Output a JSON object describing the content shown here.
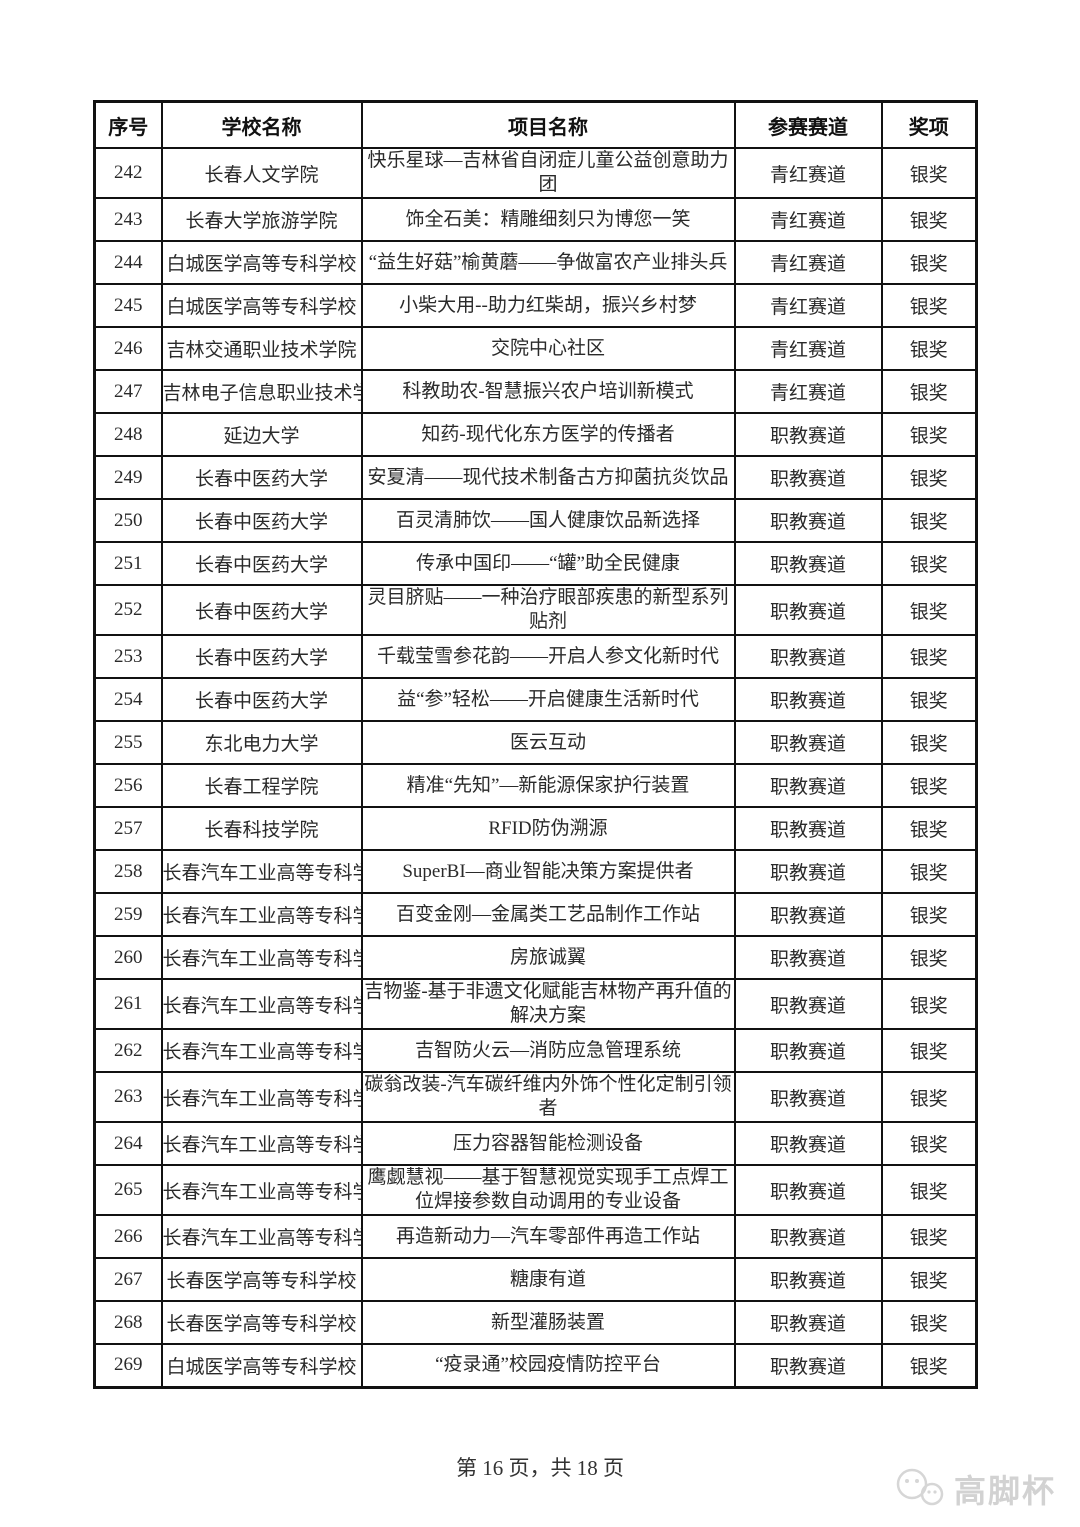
{
  "table": {
    "headers": [
      "序号",
      "学校名称",
      "项目名称",
      "参赛赛道",
      "奖项"
    ],
    "rows": [
      {
        "no": "242",
        "school": "长春人文学院",
        "project": "快乐星球—吉林省自闭症儿童公益创意助力团",
        "track": "青红赛道",
        "award": "银奖"
      },
      {
        "no": "243",
        "school": "长春大学旅游学院",
        "project": "饰全石美：精雕细刻只为博您一笑",
        "track": "青红赛道",
        "award": "银奖"
      },
      {
        "no": "244",
        "school": "白城医学高等专科学校",
        "project": "“益生好菇”榆黄蘑——争做富农产业排头兵",
        "track": "青红赛道",
        "award": "银奖"
      },
      {
        "no": "245",
        "school": "白城医学高等专科学校",
        "project": "小柴大用--助力红柴胡，振兴乡村梦",
        "track": "青红赛道",
        "award": "银奖"
      },
      {
        "no": "246",
        "school": "吉林交通职业技术学院",
        "project": "交院中心社区",
        "track": "青红赛道",
        "award": "银奖"
      },
      {
        "no": "247",
        "school": "吉林电子信息职业技术学院",
        "project": "科教助农-智慧振兴农户培训新模式",
        "track": "青红赛道",
        "award": "银奖"
      },
      {
        "no": "248",
        "school": "延边大学",
        "project": "知药-现代化东方医学的传播者",
        "track": "职教赛道",
        "award": "银奖"
      },
      {
        "no": "249",
        "school": "长春中医药大学",
        "project": "安夏清——现代技术制备古方抑菌抗炎饮品",
        "track": "职教赛道",
        "award": "银奖"
      },
      {
        "no": "250",
        "school": "长春中医药大学",
        "project": "百灵清肺饮——国人健康饮品新选择",
        "track": "职教赛道",
        "award": "银奖"
      },
      {
        "no": "251",
        "school": "长春中医药大学",
        "project": "传承中国印——“罐”助全民健康",
        "track": "职教赛道",
        "award": "银奖"
      },
      {
        "no": "252",
        "school": "长春中医药大学",
        "project": "灵目脐贴——一种治疗眼部疾患的新型系列贴剂",
        "track": "职教赛道",
        "award": "银奖"
      },
      {
        "no": "253",
        "school": "长春中医药大学",
        "project": "千载莹雪参花韵——开启人参文化新时代",
        "track": "职教赛道",
        "award": "银奖"
      },
      {
        "no": "254",
        "school": "长春中医药大学",
        "project": "益“参”轻松——开启健康生活新时代",
        "track": "职教赛道",
        "award": "银奖"
      },
      {
        "no": "255",
        "school": "东北电力大学",
        "project": "医云互动",
        "track": "职教赛道",
        "award": "银奖"
      },
      {
        "no": "256",
        "school": "长春工程学院",
        "project": "精准“先知”—新能源保家护行装置",
        "track": "职教赛道",
        "award": "银奖"
      },
      {
        "no": "257",
        "school": "长春科技学院",
        "project": "RFID防伪溯源",
        "track": "职教赛道",
        "award": "银奖"
      },
      {
        "no": "258",
        "school": "长春汽车工业高等专科学校",
        "project": "SuperBI—商业智能决策方案提供者",
        "track": "职教赛道",
        "award": "银奖"
      },
      {
        "no": "259",
        "school": "长春汽车工业高等专科学校",
        "project": "百变金刚—金属类工艺品制作工作站",
        "track": "职教赛道",
        "award": "银奖"
      },
      {
        "no": "260",
        "school": "长春汽车工业高等专科学校",
        "project": "房旅诚翼",
        "track": "职教赛道",
        "award": "银奖"
      },
      {
        "no": "261",
        "school": "长春汽车工业高等专科学校",
        "project": "吉物鉴-基于非遗文化赋能吉林物产再升值的解决方案",
        "track": "职教赛道",
        "award": "银奖"
      },
      {
        "no": "262",
        "school": "长春汽车工业高等专科学校",
        "project": "吉智防火云—消防应急管理系统",
        "track": "职教赛道",
        "award": "银奖"
      },
      {
        "no": "263",
        "school": "长春汽车工业高等专科学校",
        "project": "碳翁改装-汽车碳纤维内外饰个性化定制引领者",
        "track": "职教赛道",
        "award": "银奖"
      },
      {
        "no": "264",
        "school": "长春汽车工业高等专科学校",
        "project": "压力容器智能检测设备",
        "track": "职教赛道",
        "award": "银奖"
      },
      {
        "no": "265",
        "school": "长春汽车工业高等专科学校",
        "project": "鹰觑慧视——基于智慧视觉实现手工点焊工位焊接参数自动调用的专业设备",
        "track": "职教赛道",
        "award": "银奖"
      },
      {
        "no": "266",
        "school": "长春汽车工业高等专科学校",
        "project": "再造新动力—汽车零部件再造工作站",
        "track": "职教赛道",
        "award": "银奖"
      },
      {
        "no": "267",
        "school": "长春医学高等专科学校",
        "project": "糖康有道",
        "track": "职教赛道",
        "award": "银奖"
      },
      {
        "no": "268",
        "school": "长春医学高等专科学校",
        "project": "新型灌肠装置",
        "track": "职教赛道",
        "award": "银奖"
      },
      {
        "no": "269",
        "school": "白城医学高等专科学校",
        "project": "“疫录通”校园疫情防控平台",
        "track": "职教赛道",
        "award": "银奖"
      }
    ]
  },
  "footer": {
    "page_text": "第 16 页，共 18 页"
  },
  "watermark": {
    "brand": "高脚杯"
  }
}
